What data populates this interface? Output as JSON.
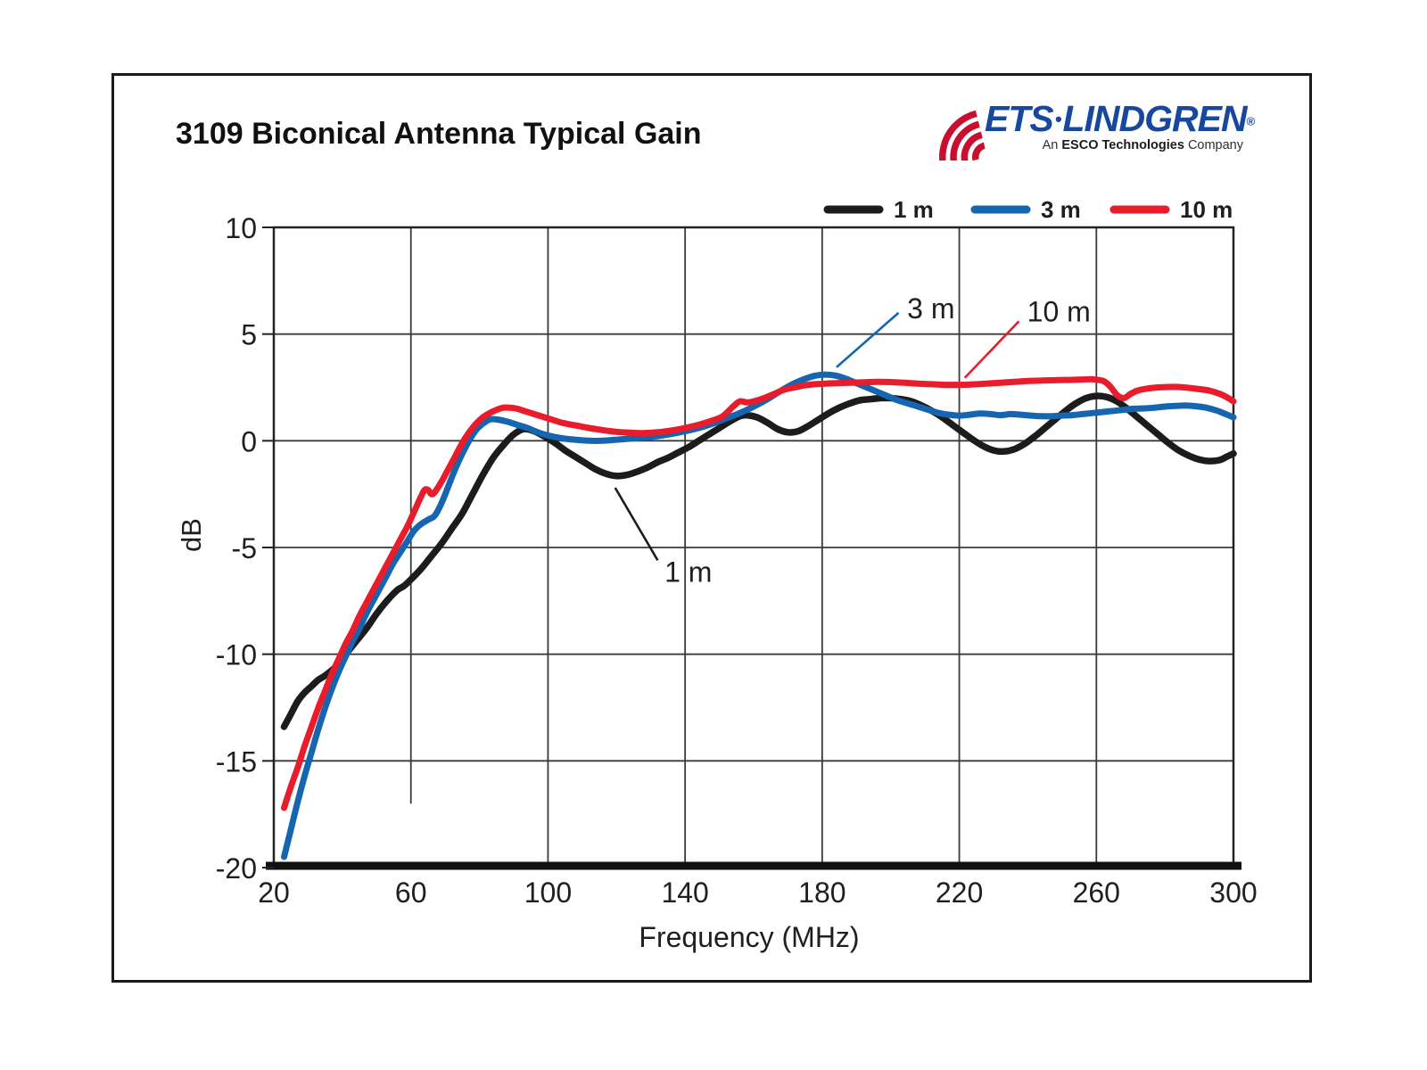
{
  "header": {
    "title": "3109 Biconical Antenna Typical Gain",
    "logo": {
      "brand_left": "ETS",
      "separator": "•",
      "brand_right": "LINDGREN",
      "registered": "®",
      "tagline_prefix": "An",
      "tagline_bold": "ESCO Technologies",
      "tagline_suffix": "Company",
      "brand_color": "#17479e",
      "arc_color": "#c8102e"
    }
  },
  "chart_data": {
    "type": "line",
    "title": "3109 Biconical Antenna Typical Gain",
    "xlabel": "Frequency (MHz)",
    "ylabel": "dB",
    "xlim": [
      20,
      300
    ],
    "ylim": [
      -20,
      10
    ],
    "x_ticks": [
      20,
      60,
      100,
      140,
      180,
      220,
      260,
      300
    ],
    "y_ticks": [
      10,
      5,
      0,
      -5,
      -10,
      -15,
      -20
    ],
    "grid": true,
    "legend_position": "top-right",
    "colors": {
      "grid": "#3a3a3a",
      "border": "#222222",
      "text": "#1f1f1f"
    },
    "series": [
      {
        "name": "1 m",
        "color": "#1c1c1c",
        "width": 7.5,
        "points": [
          [
            23,
            -13.4
          ],
          [
            25,
            -12.8
          ],
          [
            27,
            -12.2
          ],
          [
            29,
            -11.8
          ],
          [
            31,
            -11.5
          ],
          [
            33,
            -11.2
          ],
          [
            35,
            -11.0
          ],
          [
            38,
            -10.6
          ],
          [
            41,
            -10.0
          ],
          [
            44,
            -9.4
          ],
          [
            47,
            -8.8
          ],
          [
            50,
            -8.1
          ],
          [
            53,
            -7.5
          ],
          [
            56,
            -7.0
          ],
          [
            58,
            -6.8
          ],
          [
            60,
            -6.5
          ],
          [
            63,
            -6.0
          ],
          [
            66,
            -5.4
          ],
          [
            69,
            -4.8
          ],
          [
            72,
            -4.1
          ],
          [
            75,
            -3.4
          ],
          [
            78,
            -2.5
          ],
          [
            81,
            -1.6
          ],
          [
            84,
            -0.8
          ],
          [
            87,
            -0.2
          ],
          [
            90,
            0.3
          ],
          [
            93,
            0.55
          ],
          [
            96,
            0.45
          ],
          [
            99,
            0.2
          ],
          [
            102,
            -0.1
          ],
          [
            105,
            -0.45
          ],
          [
            108,
            -0.75
          ],
          [
            111,
            -1.05
          ],
          [
            114,
            -1.35
          ],
          [
            117,
            -1.55
          ],
          [
            120,
            -1.65
          ],
          [
            123,
            -1.6
          ],
          [
            126,
            -1.45
          ],
          [
            129,
            -1.25
          ],
          [
            132,
            -1.0
          ],
          [
            135,
            -0.8
          ],
          [
            138,
            -0.55
          ],
          [
            141,
            -0.3
          ],
          [
            144,
            0.0
          ],
          [
            147,
            0.3
          ],
          [
            150,
            0.6
          ],
          [
            153,
            0.9
          ],
          [
            156,
            1.15
          ],
          [
            158,
            1.2
          ],
          [
            161,
            1.1
          ],
          [
            164,
            0.85
          ],
          [
            167,
            0.55
          ],
          [
            170,
            0.4
          ],
          [
            173,
            0.45
          ],
          [
            176,
            0.7
          ],
          [
            179,
            1.0
          ],
          [
            182,
            1.3
          ],
          [
            185,
            1.55
          ],
          [
            188,
            1.75
          ],
          [
            191,
            1.9
          ],
          [
            194,
            1.95
          ],
          [
            197,
            2.0
          ],
          [
            200,
            2.0
          ],
          [
            203,
            1.95
          ],
          [
            206,
            1.85
          ],
          [
            209,
            1.65
          ],
          [
            212,
            1.4
          ],
          [
            215,
            1.1
          ],
          [
            218,
            0.75
          ],
          [
            221,
            0.4
          ],
          [
            224,
            0.05
          ],
          [
            227,
            -0.25
          ],
          [
            230,
            -0.45
          ],
          [
            233,
            -0.5
          ],
          [
            236,
            -0.4
          ],
          [
            239,
            -0.15
          ],
          [
            242,
            0.2
          ],
          [
            245,
            0.6
          ],
          [
            248,
            1.0
          ],
          [
            251,
            1.4
          ],
          [
            254,
            1.75
          ],
          [
            257,
            2.0
          ],
          [
            260,
            2.1
          ],
          [
            263,
            2.05
          ],
          [
            266,
            1.85
          ],
          [
            269,
            1.5
          ],
          [
            272,
            1.1
          ],
          [
            275,
            0.7
          ],
          [
            278,
            0.3
          ],
          [
            281,
            -0.1
          ],
          [
            284,
            -0.45
          ],
          [
            287,
            -0.7
          ],
          [
            290,
            -0.88
          ],
          [
            293,
            -0.95
          ],
          [
            296,
            -0.9
          ],
          [
            298,
            -0.75
          ],
          [
            300,
            -0.6
          ]
        ]
      },
      {
        "name": "3 m",
        "color": "#1565b1",
        "width": 7,
        "points": [
          [
            23,
            -19.5
          ],
          [
            25,
            -18.2
          ],
          [
            27,
            -16.9
          ],
          [
            29,
            -15.7
          ],
          [
            31,
            -14.6
          ],
          [
            33,
            -13.5
          ],
          [
            35,
            -12.5
          ],
          [
            37,
            -11.6
          ],
          [
            39,
            -10.8
          ],
          [
            41,
            -10.1
          ],
          [
            43,
            -9.4
          ],
          [
            45,
            -8.8
          ],
          [
            47,
            -8.1
          ],
          [
            49,
            -7.5
          ],
          [
            51,
            -6.9
          ],
          [
            53,
            -6.3
          ],
          [
            55,
            -5.7
          ],
          [
            57,
            -5.2
          ],
          [
            59,
            -4.7
          ],
          [
            61,
            -4.2
          ],
          [
            63,
            -3.9
          ],
          [
            65,
            -3.7
          ],
          [
            67,
            -3.5
          ],
          [
            69,
            -2.9
          ],
          [
            71,
            -2.1
          ],
          [
            73,
            -1.3
          ],
          [
            75,
            -0.6
          ],
          [
            77,
            0.0
          ],
          [
            79,
            0.5
          ],
          [
            81,
            0.8
          ],
          [
            83,
            1.0
          ],
          [
            85,
            1.0
          ],
          [
            88,
            0.9
          ],
          [
            91,
            0.75
          ],
          [
            94,
            0.6
          ],
          [
            97,
            0.4
          ],
          [
            100,
            0.25
          ],
          [
            104,
            0.12
          ],
          [
            108,
            0.05
          ],
          [
            112,
            0.0
          ],
          [
            116,
            0.0
          ],
          [
            120,
            0.05
          ],
          [
            124,
            0.1
          ],
          [
            128,
            0.15
          ],
          [
            132,
            0.22
          ],
          [
            136,
            0.32
          ],
          [
            140,
            0.45
          ],
          [
            144,
            0.6
          ],
          [
            148,
            0.8
          ],
          [
            152,
            1.05
          ],
          [
            156,
            1.3
          ],
          [
            160,
            1.6
          ],
          [
            164,
            1.95
          ],
          [
            168,
            2.35
          ],
          [
            172,
            2.7
          ],
          [
            175,
            2.9
          ],
          [
            178,
            3.05
          ],
          [
            181,
            3.1
          ],
          [
            184,
            3.05
          ],
          [
            187,
            2.9
          ],
          [
            190,
            2.7
          ],
          [
            193,
            2.5
          ],
          [
            196,
            2.3
          ],
          [
            199,
            2.1
          ],
          [
            202,
            1.9
          ],
          [
            205,
            1.75
          ],
          [
            208,
            1.6
          ],
          [
            211,
            1.45
          ],
          [
            214,
            1.3
          ],
          [
            217,
            1.22
          ],
          [
            220,
            1.18
          ],
          [
            223,
            1.22
          ],
          [
            226,
            1.28
          ],
          [
            229,
            1.25
          ],
          [
            232,
            1.2
          ],
          [
            235,
            1.25
          ],
          [
            238,
            1.22
          ],
          [
            241,
            1.18
          ],
          [
            244,
            1.15
          ],
          [
            247,
            1.15
          ],
          [
            250,
            1.18
          ],
          [
            253,
            1.2
          ],
          [
            256,
            1.25
          ],
          [
            259,
            1.3
          ],
          [
            262,
            1.35
          ],
          [
            265,
            1.4
          ],
          [
            268,
            1.45
          ],
          [
            271,
            1.5
          ],
          [
            274,
            1.52
          ],
          [
            277,
            1.55
          ],
          [
            280,
            1.6
          ],
          [
            283,
            1.63
          ],
          [
            286,
            1.65
          ],
          [
            289,
            1.62
          ],
          [
            292,
            1.55
          ],
          [
            295,
            1.42
          ],
          [
            297,
            1.3
          ],
          [
            300,
            1.1
          ]
        ]
      },
      {
        "name": "10 m",
        "color": "#e81c2a",
        "width": 7,
        "points": [
          [
            23,
            -17.2
          ],
          [
            25,
            -16.2
          ],
          [
            27,
            -15.3
          ],
          [
            29,
            -14.3
          ],
          [
            31,
            -13.4
          ],
          [
            33,
            -12.5
          ],
          [
            35,
            -11.7
          ],
          [
            37,
            -10.9
          ],
          [
            39,
            -10.2
          ],
          [
            41,
            -9.5
          ],
          [
            43,
            -8.9
          ],
          [
            45,
            -8.2
          ],
          [
            47,
            -7.6
          ],
          [
            49,
            -7.0
          ],
          [
            51,
            -6.4
          ],
          [
            53,
            -5.8
          ],
          [
            55,
            -5.2
          ],
          [
            57,
            -4.6
          ],
          [
            59,
            -4.0
          ],
          [
            61,
            -3.3
          ],
          [
            63,
            -2.6
          ],
          [
            64,
            -2.3
          ],
          [
            65,
            -2.3
          ],
          [
            66,
            -2.5
          ],
          [
            67,
            -2.4
          ],
          [
            69,
            -1.9
          ],
          [
            71,
            -1.3
          ],
          [
            73,
            -0.7
          ],
          [
            75,
            -0.1
          ],
          [
            77,
            0.4
          ],
          [
            79,
            0.8
          ],
          [
            81,
            1.1
          ],
          [
            83,
            1.3
          ],
          [
            85,
            1.45
          ],
          [
            87,
            1.55
          ],
          [
            89,
            1.55
          ],
          [
            91,
            1.5
          ],
          [
            93,
            1.4
          ],
          [
            95,
            1.3
          ],
          [
            97,
            1.2
          ],
          [
            100,
            1.05
          ],
          [
            104,
            0.85
          ],
          [
            108,
            0.72
          ],
          [
            112,
            0.6
          ],
          [
            116,
            0.5
          ],
          [
            120,
            0.42
          ],
          [
            124,
            0.38
          ],
          [
            128,
            0.36
          ],
          [
            132,
            0.4
          ],
          [
            136,
            0.48
          ],
          [
            140,
            0.6
          ],
          [
            144,
            0.75
          ],
          [
            148,
            0.95
          ],
          [
            151,
            1.15
          ],
          [
            154,
            1.6
          ],
          [
            156,
            1.85
          ],
          [
            158,
            1.8
          ],
          [
            160,
            1.85
          ],
          [
            163,
            2.0
          ],
          [
            166,
            2.2
          ],
          [
            169,
            2.4
          ],
          [
            172,
            2.5
          ],
          [
            175,
            2.6
          ],
          [
            178,
            2.65
          ],
          [
            181,
            2.68
          ],
          [
            184,
            2.7
          ],
          [
            188,
            2.72
          ],
          [
            192,
            2.74
          ],
          [
            196,
            2.76
          ],
          [
            200,
            2.75
          ],
          [
            204,
            2.72
          ],
          [
            208,
            2.68
          ],
          [
            212,
            2.65
          ],
          [
            216,
            2.62
          ],
          [
            220,
            2.62
          ],
          [
            224,
            2.64
          ],
          [
            228,
            2.68
          ],
          [
            232,
            2.72
          ],
          [
            236,
            2.76
          ],
          [
            240,
            2.8
          ],
          [
            244,
            2.82
          ],
          [
            248,
            2.84
          ],
          [
            252,
            2.85
          ],
          [
            256,
            2.87
          ],
          [
            259,
            2.88
          ],
          [
            262,
            2.8
          ],
          [
            264,
            2.55
          ],
          [
            266,
            2.15
          ],
          [
            268,
            2.0
          ],
          [
            270,
            2.2
          ],
          [
            272,
            2.35
          ],
          [
            275,
            2.45
          ],
          [
            278,
            2.5
          ],
          [
            281,
            2.52
          ],
          [
            284,
            2.52
          ],
          [
            287,
            2.48
          ],
          [
            290,
            2.42
          ],
          [
            293,
            2.35
          ],
          [
            296,
            2.2
          ],
          [
            298,
            2.05
          ],
          [
            300,
            1.85
          ]
        ]
      }
    ],
    "annotations": [
      {
        "label": "3 m",
        "line_color": "#1565b1",
        "from": [
          184.2,
          3.45
        ],
        "to": [
          202.3,
          6.0
        ],
        "text_at": [
          204.8,
          6.25
        ]
      },
      {
        "label": "10 m",
        "line_color": "#e81c2a",
        "from": [
          221.6,
          2.95
        ],
        "to": [
          237.4,
          5.6
        ],
        "text_at": [
          239.8,
          6.1
        ]
      },
      {
        "label": "1 m",
        "line_color": "#1c1c1c",
        "from": [
          119.6,
          -2.2
        ],
        "to": [
          132.0,
          -5.6
        ],
        "text_at": [
          134.0,
          -6.1
        ]
      }
    ],
    "legend": [
      {
        "label": "1 m",
        "color": "#1c1c1c"
      },
      {
        "label": "3 m",
        "color": "#1565b1"
      },
      {
        "label": "10 m",
        "color": "#e81c2a"
      }
    ]
  }
}
